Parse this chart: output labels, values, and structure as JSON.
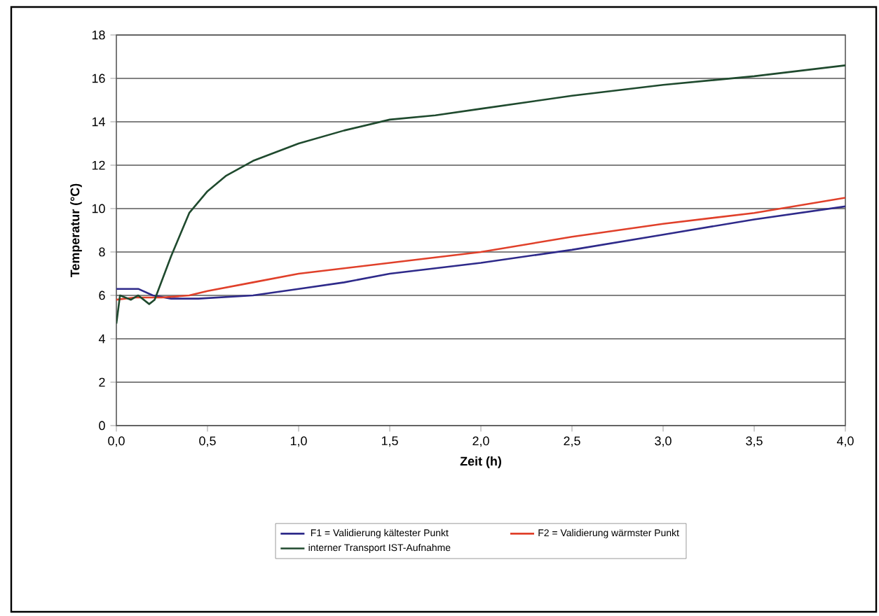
{
  "chart_data": {
    "type": "line",
    "xlabel": "Zeit (h)",
    "ylabel": "Temperatur (°C)",
    "xlim": [
      0,
      4
    ],
    "ylim": [
      0,
      18
    ],
    "xticks": [
      {
        "value": 0,
        "label": "0,0"
      },
      {
        "value": 0.5,
        "label": "0,5"
      },
      {
        "value": 1,
        "label": "1,0"
      },
      {
        "value": 1.5,
        "label": "1,5"
      },
      {
        "value": 2,
        "label": "2,0"
      },
      {
        "value": 2.5,
        "label": "2,5"
      },
      {
        "value": 3,
        "label": "3,0"
      },
      {
        "value": 3.5,
        "label": "3,5"
      },
      {
        "value": 4,
        "label": "4,0"
      }
    ],
    "yticks": [
      0,
      2,
      4,
      6,
      8,
      10,
      12,
      14,
      16,
      18
    ],
    "grid": "y",
    "legend": "bottom",
    "marker": "none",
    "line_style": "solid",
    "series": [
      {
        "name": "F1 = Validierung kältester Punkt",
        "color": "#2e2a8a",
        "x": [
          0,
          0.12,
          0.2,
          0.3,
          0.45,
          0.75,
          1.0,
          1.25,
          1.5,
          2.0,
          2.5,
          3.0,
          3.5,
          4.0
        ],
        "values": [
          6.3,
          6.3,
          6.0,
          5.85,
          5.85,
          6.0,
          6.3,
          6.6,
          7.0,
          7.5,
          8.1,
          8.8,
          9.5,
          10.1
        ]
      },
      {
        "name": "F2 = Validierung wärmster Punkt",
        "color": "#e0402a",
        "x": [
          0,
          0.1,
          0.25,
          0.4,
          0.5,
          0.75,
          1.0,
          1.5,
          2.0,
          2.5,
          3.0,
          3.5,
          4.0
        ],
        "values": [
          5.8,
          5.9,
          5.9,
          6.0,
          6.2,
          6.6,
          7.0,
          7.5,
          8.0,
          8.7,
          9.3,
          9.8,
          10.5
        ]
      },
      {
        "name": "interner Transport IST-Aufnahme",
        "color": "#1f4a2e",
        "x": [
          0,
          0.02,
          0.08,
          0.12,
          0.18,
          0.21,
          0.3,
          0.4,
          0.5,
          0.6,
          0.75,
          1.0,
          1.25,
          1.5,
          1.75,
          2.0,
          2.5,
          3.0,
          3.5,
          4.0
        ],
        "values": [
          4.7,
          6.0,
          5.8,
          6.0,
          5.6,
          5.8,
          7.8,
          9.8,
          10.8,
          11.5,
          12.2,
          13.0,
          13.6,
          14.1,
          14.3,
          14.6,
          15.2,
          15.7,
          16.1,
          16.6
        ]
      }
    ]
  }
}
